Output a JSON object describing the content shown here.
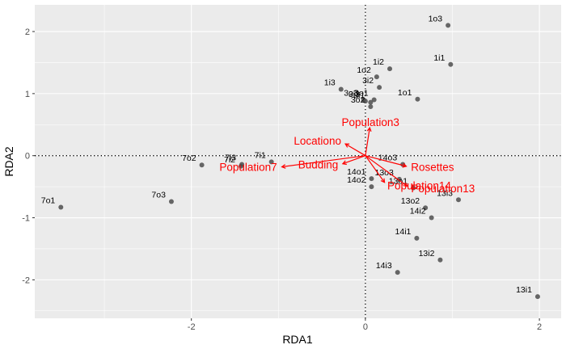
{
  "chart_data": {
    "type": "scatter",
    "xlabel": "RDA1",
    "ylabel": "RDA2",
    "xlim": [
      -3.8,
      2.25
    ],
    "ylim": [
      -2.62,
      2.43
    ],
    "xticks": [
      -2,
      0,
      2
    ],
    "yticks": [
      -2,
      -1,
      0,
      1,
      2
    ],
    "grid": true,
    "reference_lines": {
      "x": 0,
      "y": 0,
      "style": "dotted"
    },
    "colors": {
      "panel": "#ebebeb",
      "grid": "#ffffff",
      "points": "#4d4d4d",
      "vectors": "#ff0000"
    },
    "points": [
      {
        "label": "1o3",
        "x": 0.95,
        "y": 2.1
      },
      {
        "label": "1i1",
        "x": 0.98,
        "y": 1.47
      },
      {
        "label": "1i2",
        "x": 0.28,
        "y": 1.4
      },
      {
        "label": "1o2",
        "x": 0.13,
        "y": 1.27
      },
      {
        "label": "3i2",
        "x": 0.16,
        "y": 1.1
      },
      {
        "label": "1i3",
        "x": -0.28,
        "y": 1.07
      },
      {
        "label": "1o1",
        "x": 0.6,
        "y": 0.91
      },
      {
        "label": "3o3",
        "x": -0.02,
        "y": 0.9
      },
      {
        "label": "3o1",
        "x": 0.1,
        "y": 0.9
      },
      {
        "label": "3i1",
        "x": 0.06,
        "y": 0.86
      },
      {
        "label": "3i3",
        "x": 0.0,
        "y": 0.88
      },
      {
        "label": "3o2",
        "x": 0.06,
        "y": 0.79
      },
      {
        "label": "7i2",
        "x": -1.43,
        "y": -0.17
      },
      {
        "label": "7i3",
        "x": -1.42,
        "y": -0.14
      },
      {
        "label": "7i1",
        "x": -1.08,
        "y": -0.1
      },
      {
        "label": "7o2",
        "x": -1.88,
        "y": -0.15
      },
      {
        "label": "7o1",
        "x": -3.5,
        "y": -0.83
      },
      {
        "label": "7o3",
        "x": -2.23,
        "y": -0.74
      },
      {
        "label": "14o1",
        "x": 0.07,
        "y": -0.37
      },
      {
        "label": "14o2",
        "x": 0.07,
        "y": -0.5
      },
      {
        "label": "14o3",
        "x": 0.43,
        "y": -0.14
      },
      {
        "label": "13o3",
        "x": 0.39,
        "y": -0.38
      },
      {
        "label": "13o1",
        "x": 0.55,
        "y": -0.52
      },
      {
        "label": "13o2",
        "x": 0.69,
        "y": -0.84
      },
      {
        "label": "14i2",
        "x": 0.76,
        "y": -1.0
      },
      {
        "label": "13i3",
        "x": 1.07,
        "y": -0.71
      },
      {
        "label": "14i1",
        "x": 0.59,
        "y": -1.33
      },
      {
        "label": "13i2",
        "x": 0.86,
        "y": -1.68
      },
      {
        "label": "14i3",
        "x": 0.37,
        "y": -1.88
      },
      {
        "label": "13i1",
        "x": 1.98,
        "y": -2.27
      }
    ],
    "vectors": [
      {
        "label": "Population3",
        "x": 0.05,
        "y": 0.45
      },
      {
        "label": "Locationo",
        "x": -0.23,
        "y": 0.19
      },
      {
        "label": "Budding",
        "x": -0.26,
        "y": -0.13
      },
      {
        "label": "Population7",
        "x": -0.96,
        "y": -0.18
      },
      {
        "label": "Rosettes",
        "x": 0.47,
        "y": -0.17
      },
      {
        "label": "Population14",
        "x": 0.22,
        "y": -0.43
      },
      {
        "label": "Population13",
        "x": 0.48,
        "y": -0.49
      }
    ]
  }
}
